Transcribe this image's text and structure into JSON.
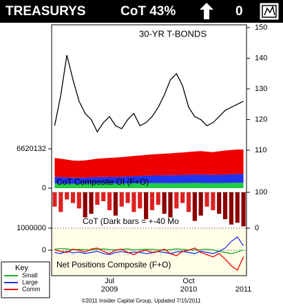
{
  "header": {
    "title": "TREASURYS",
    "cot": "CoT 43%",
    "signal": "0"
  },
  "key": {
    "title": "Key"
  },
  "footer": "©2011 Insider Capital Group, Updated 7/15/2011",
  "chart_data": [
    {
      "type": "line",
      "title": "30-YR T-BONDS",
      "series": [
        {
          "color": "#000000",
          "values": [
            118,
            128,
            141,
            133,
            126,
            122,
            120,
            116,
            119,
            121,
            118,
            117,
            120,
            122,
            118,
            119,
            121,
            124,
            128,
            133,
            135,
            131,
            124,
            121,
            120,
            118,
            119,
            121,
            123,
            124,
            125,
            126
          ]
        }
      ],
      "ylim": [
        110,
        150
      ],
      "yticks": [
        110,
        120,
        130,
        140,
        150
      ]
    },
    {
      "type": "stacked_area",
      "title": "CoT Composite OI (F+O)",
      "series": [
        {
          "color": "#22cc44",
          "values": [
            800000,
            780000,
            760000,
            740000,
            760000,
            780000,
            800000,
            820000,
            810000,
            800000,
            790000,
            780000,
            800000,
            820000,
            840000,
            850000,
            860000,
            850000,
            840000,
            830000,
            850000,
            860000,
            870000,
            880000,
            870000,
            860000,
            850000,
            860000,
            870000,
            880000,
            890000,
            900000
          ]
        },
        {
          "color": "#2233ee",
          "values": [
            1100000,
            1080000,
            1050000,
            1020000,
            1000000,
            1000000,
            1020000,
            1050000,
            1080000,
            1100000,
            1120000,
            1150000,
            1180000,
            1200000,
            1220000,
            1250000,
            1280000,
            1300000,
            1320000,
            1340000,
            1350000,
            1360000,
            1380000,
            1400000,
            1420000,
            1400000,
            1380000,
            1400000,
            1420000,
            1450000,
            1480000,
            1500000
          ]
        },
        {
          "color": "#ee0000",
          "values": [
            3200000,
            3100000,
            3000000,
            2900000,
            2850000,
            2900000,
            3000000,
            3100000,
            3150000,
            3200000,
            3250000,
            3300000,
            3350000,
            3400000,
            3450000,
            3500000,
            3550000,
            3600000,
            3650000,
            3700000,
            3750000,
            3800000,
            3850000,
            3900000,
            3950000,
            3900000,
            3850000,
            3950000,
            4050000,
            4100000,
            4150000,
            4100000
          ]
        }
      ],
      "ylim": [
        0,
        6620132
      ],
      "yticks": [
        0,
        6620132
      ]
    },
    {
      "type": "bar",
      "title": "CoT (Dark bars = +-40 Mo",
      "values": [
        60,
        45,
        80,
        70,
        55,
        30,
        40,
        65,
        75,
        50,
        35,
        60,
        70,
        45,
        55,
        25,
        50,
        65,
        40,
        30,
        55,
        70,
        45,
        20,
        35,
        60,
        50,
        40,
        25,
        10,
        15,
        5
      ],
      "colors": [
        "#dd2222",
        "#dd2222",
        "#dd2222",
        "#dd2222",
        "#dd2222",
        "#8b0000",
        "#8b0000",
        "#dd2222",
        "#dd2222",
        "#dd2222",
        "#8b0000",
        "#dd2222",
        "#dd2222",
        "#dd2222",
        "#dd2222",
        "#8b0000",
        "#dd2222",
        "#dd2222",
        "#8b0000",
        "#8b0000",
        "#dd2222",
        "#dd2222",
        "#dd2222",
        "#8b0000",
        "#8b0000",
        "#dd2222",
        "#dd2222",
        "#8b0000",
        "#8b0000",
        "#8b0000",
        "#8b0000",
        "#8b0000"
      ],
      "ylim": [
        0,
        100
      ],
      "yticks": [
        0,
        100
      ]
    },
    {
      "type": "line",
      "title": "Net Positions Composite (F+O)",
      "categories": [
        null,
        null,
        null,
        null,
        null,
        null,
        null,
        null,
        null,
        "Jul",
        null,
        null,
        null,
        null,
        null,
        null,
        null,
        null,
        null,
        null,
        null,
        null,
        "Oct",
        null,
        null,
        null,
        null,
        null,
        null,
        null,
        null,
        null
      ],
      "category_years": [
        null,
        null,
        null,
        null,
        null,
        null,
        null,
        null,
        null,
        "2009",
        null,
        null,
        null,
        null,
        null,
        null,
        null,
        null,
        null,
        null,
        null,
        null,
        "2010",
        null,
        null,
        null,
        null,
        null,
        null,
        null,
        null,
        "2011"
      ],
      "series": [
        {
          "name": "Small",
          "color": "#22aa22",
          "values": [
            50000,
            80000,
            60000,
            20000,
            40000,
            30000,
            10000,
            50000,
            60000,
            30000,
            20000,
            40000,
            60000,
            20000,
            30000,
            50000,
            40000,
            20000,
            10000,
            30000,
            60000,
            40000,
            20000,
            10000,
            30000,
            50000,
            20000,
            -50000,
            -100000,
            -150000,
            -80000,
            20000
          ]
        },
        {
          "name": "Large",
          "color": "#2233ee",
          "values": [
            -100000,
            -150000,
            -50000,
            -120000,
            -80000,
            -150000,
            -100000,
            -50000,
            -150000,
            -200000,
            -100000,
            -60000,
            -120000,
            -80000,
            -100000,
            -150000,
            -120000,
            -60000,
            -100000,
            -150000,
            -80000,
            -50000,
            -100000,
            -150000,
            -50000,
            -100000,
            -150000,
            -50000,
            100000,
            400000,
            600000,
            200000
          ]
        },
        {
          "name": "Comm",
          "color": "#ee0000",
          "values": [
            20000,
            -50000,
            -100000,
            50000,
            0,
            -80000,
            60000,
            100000,
            -50000,
            -150000,
            0,
            50000,
            -100000,
            -200000,
            -50000,
            0,
            -100000,
            -50000,
            50000,
            -150000,
            -250000,
            -50000,
            0,
            100000,
            -100000,
            -200000,
            -300000,
            -150000,
            -400000,
            -700000,
            -900000,
            -300000
          ]
        }
      ],
      "ylim": [
        -1150000,
        1000000
      ],
      "yticks": [
        0,
        1000000
      ]
    }
  ]
}
